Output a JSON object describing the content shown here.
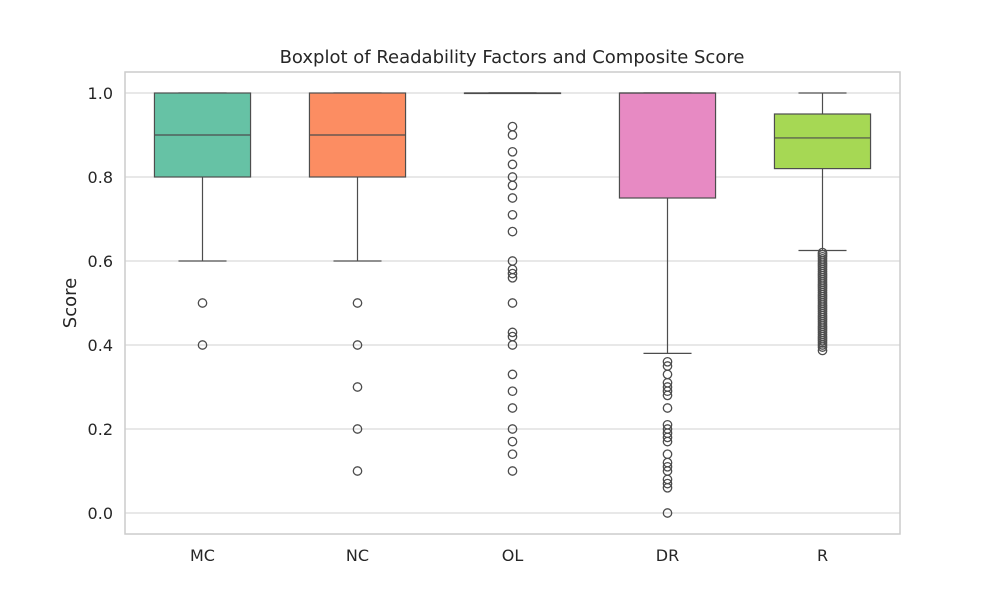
{
  "chart_data": {
    "type": "boxplot",
    "title": "Boxplot of Readability Factors and Composite Score",
    "xlabel": "",
    "ylabel": "Score",
    "ylim": [
      -0.05,
      1.05
    ],
    "yticks": [
      0.0,
      0.2,
      0.4,
      0.6,
      0.8,
      1.0
    ],
    "ytick_labels": [
      "0.0",
      "0.2",
      "0.4",
      "0.6",
      "0.8",
      "1.0"
    ],
    "grid": true,
    "categories": [
      "MC",
      "NC",
      "OL",
      "DR",
      "R"
    ],
    "boxes": [
      {
        "category": "MC",
        "color": "#66c2a5",
        "q1": 0.8,
        "median": 0.9,
        "q3": 1.0,
        "whisker_low": 0.6,
        "whisker_high": 1.0,
        "fliers": [
          0.5,
          0.4
        ]
      },
      {
        "category": "NC",
        "color": "#fc8d62",
        "q1": 0.8,
        "median": 0.9,
        "q3": 1.0,
        "whisker_low": 0.6,
        "whisker_high": 1.0,
        "fliers": [
          0.5,
          0.4,
          0.3,
          0.2,
          0.1
        ]
      },
      {
        "category": "OL",
        "color": "#8da0cb",
        "q1": 1.0,
        "median": 1.0,
        "q3": 1.0,
        "whisker_low": 1.0,
        "whisker_high": 1.0,
        "fliers": [
          0.92,
          0.9,
          0.86,
          0.83,
          0.8,
          0.78,
          0.75,
          0.71,
          0.67,
          0.6,
          0.58,
          0.57,
          0.56,
          0.5,
          0.43,
          0.42,
          0.4,
          0.33,
          0.29,
          0.25,
          0.2,
          0.17,
          0.14,
          0.1
        ]
      },
      {
        "category": "DR",
        "color": "#e78ac3",
        "q1": 0.75,
        "median": 1.0,
        "q3": 1.0,
        "whisker_low": 0.38,
        "whisker_high": 1.0,
        "fliers": [
          0.36,
          0.35,
          0.33,
          0.31,
          0.3,
          0.29,
          0.28,
          0.25,
          0.21,
          0.2,
          0.19,
          0.18,
          0.17,
          0.14,
          0.12,
          0.11,
          0.1,
          0.08,
          0.07,
          0.06,
          0.0
        ]
      },
      {
        "category": "R",
        "color": "#a6d854",
        "q1": 0.82,
        "median": 0.893,
        "q3": 0.95,
        "whisker_low": 0.625,
        "whisker_high": 1.0,
        "fliers": [
          0.62,
          0.615,
          0.61,
          0.605,
          0.6,
          0.595,
          0.59,
          0.585,
          0.58,
          0.575,
          0.57,
          0.565,
          0.56,
          0.555,
          0.55,
          0.545,
          0.54,
          0.535,
          0.53,
          0.525,
          0.52,
          0.515,
          0.51,
          0.505,
          0.5,
          0.495,
          0.49,
          0.485,
          0.48,
          0.475,
          0.47,
          0.465,
          0.46,
          0.455,
          0.45,
          0.445,
          0.44,
          0.435,
          0.43,
          0.425,
          0.42,
          0.415,
          0.41,
          0.405,
          0.4,
          0.395,
          0.387
        ]
      }
    ]
  }
}
